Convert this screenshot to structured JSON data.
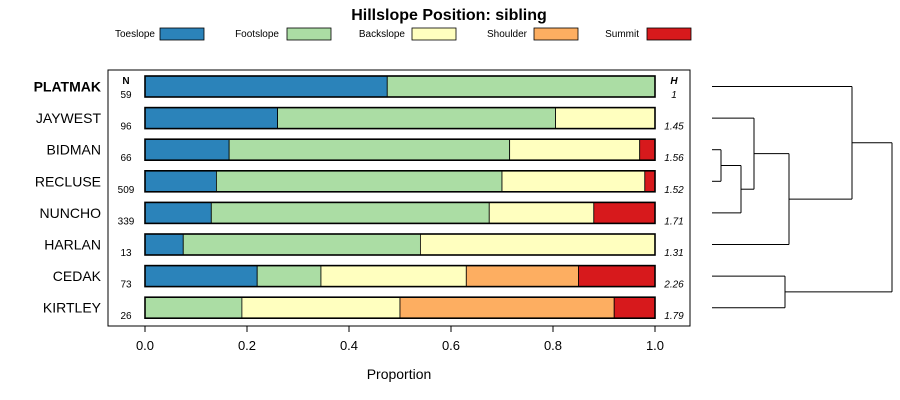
{
  "chart_data": {
    "type": "bar",
    "orientation": "horizontal-stacked",
    "title": "Hillslope Position: sibling",
    "xlabel": "Proportion",
    "xlim": [
      0,
      1
    ],
    "xticks": [
      "0.0",
      "0.2",
      "0.4",
      "0.6",
      "0.8",
      "1.0"
    ],
    "n_header": "N",
    "h_header": "H",
    "categories": [
      "PLATMAK",
      "JAYWEST",
      "BIDMAN",
      "RECLUSE",
      "NUNCHO",
      "HARLAN",
      "CEDAK",
      "KIRTLEY"
    ],
    "highlighted_category": "PLATMAK",
    "n": [
      "59",
      "96",
      "66",
      "509",
      "339",
      "13",
      "73",
      "26"
    ],
    "h": [
      "1",
      "1.45",
      "1.56",
      "1.52",
      "1.71",
      "1.31",
      "2.26",
      "1.79"
    ],
    "legend_placement": "top",
    "series": [
      {
        "name": "Toeslope",
        "color": "#2b83ba",
        "values": [
          0.475,
          0.26,
          0.165,
          0.14,
          0.13,
          0.075,
          0.22,
          0.0
        ]
      },
      {
        "name": "Footslope",
        "color": "#abdda4",
        "values": [
          0.525,
          0.545,
          0.55,
          0.56,
          0.545,
          0.465,
          0.125,
          0.19
        ]
      },
      {
        "name": "Backslope",
        "color": "#ffffbf",
        "values": [
          0.0,
          0.195,
          0.255,
          0.28,
          0.205,
          0.46,
          0.285,
          0.31
        ]
      },
      {
        "name": "Shoulder",
        "color": "#fdae61",
        "values": [
          0.0,
          0.0,
          0.0,
          0.0,
          0.0,
          0.0,
          0.22,
          0.42
        ]
      },
      {
        "name": "Summit",
        "color": "#d7191c",
        "values": [
          0.0,
          0.0,
          0.03,
          0.02,
          0.12,
          0.0,
          0.15,
          0.08
        ]
      }
    ],
    "dendrogram": true,
    "grid": false
  }
}
